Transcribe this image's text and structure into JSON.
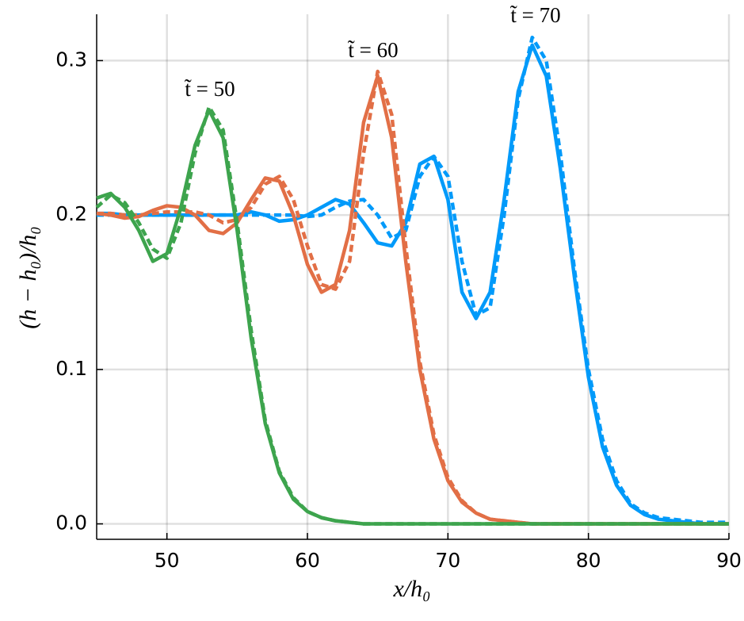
{
  "chart_data": {
    "type": "line",
    "xlabel": "x/h₀",
    "ylabel": "(h − h₀)/h₀",
    "annotations": [
      "t̃ = 50",
      "t̃ = 60",
      "t̃ = 70"
    ],
    "x": [
      45,
      46,
      47,
      48,
      49,
      50,
      51,
      52,
      53,
      54,
      55,
      56,
      57,
      58,
      59,
      60,
      61,
      62,
      63,
      64,
      65,
      66,
      67,
      68,
      69,
      70,
      71,
      72,
      73,
      74,
      75,
      76,
      77,
      78,
      79,
      80,
      81,
      82,
      83,
      84,
      85,
      86,
      87,
      88,
      89,
      90
    ],
    "series": [
      {
        "color": "#009AFA",
        "dash": false,
        "values": [
          0.201,
          0.201,
          0.2,
          0.2,
          0.2,
          0.2,
          0.2,
          0.2,
          0.2,
          0.2,
          0.2,
          0.202,
          0.2,
          0.196,
          0.197,
          0.2,
          0.205,
          0.21,
          0.207,
          0.195,
          0.182,
          0.18,
          0.195,
          0.233,
          0.238,
          0.21,
          0.15,
          0.133,
          0.15,
          0.21,
          0.28,
          0.31,
          0.29,
          0.23,
          0.16,
          0.095,
          0.05,
          0.025,
          0.012,
          0.006,
          0.003,
          0.002,
          0.001,
          0,
          0,
          0
        ]
      },
      {
        "color": "#009AFA",
        "dash": true,
        "values": [
          0.2,
          0.2,
          0.2,
          0.2,
          0.2,
          0.2,
          0.2,
          0.2,
          0.2,
          0.2,
          0.2,
          0.2,
          0.2,
          0.2,
          0.2,
          0.199,
          0.2,
          0.205,
          0.209,
          0.21,
          0.2,
          0.185,
          0.19,
          0.225,
          0.238,
          0.225,
          0.17,
          0.135,
          0.14,
          0.2,
          0.275,
          0.315,
          0.3,
          0.24,
          0.165,
          0.1,
          0.055,
          0.028,
          0.013,
          0.007,
          0.004,
          0.003,
          0.002,
          0.001,
          0.001,
          0.001
        ]
      },
      {
        "color": "#E26F46",
        "dash": false,
        "values": [
          0.201,
          0.2,
          0.198,
          0.199,
          0.203,
          0.206,
          0.205,
          0.2,
          0.19,
          0.188,
          0.195,
          0.21,
          0.224,
          0.222,
          0.2,
          0.168,
          0.15,
          0.155,
          0.19,
          0.26,
          0.29,
          0.25,
          0.17,
          0.1,
          0.055,
          0.028,
          0.014,
          0.007,
          0.003,
          0.002,
          0.001,
          0,
          0,
          0,
          0,
          0,
          0,
          0,
          0,
          0,
          0,
          0,
          0,
          0,
          0,
          0
        ]
      },
      {
        "color": "#E26F46",
        "dash": true,
        "values": [
          0.201,
          0.201,
          0.2,
          0.2,
          0.201,
          0.202,
          0.202,
          0.202,
          0.2,
          0.195,
          0.197,
          0.205,
          0.22,
          0.225,
          0.21,
          0.18,
          0.155,
          0.152,
          0.17,
          0.24,
          0.293,
          0.265,
          0.18,
          0.105,
          0.058,
          0.03,
          0.015,
          0.007,
          0.003,
          0.002,
          0.001,
          0,
          0,
          0,
          0,
          0,
          0,
          0,
          0,
          0,
          0,
          0,
          0,
          0,
          0,
          0
        ]
      },
      {
        "color": "#3DA44D",
        "dash": false,
        "values": [
          0.211,
          0.214,
          0.205,
          0.19,
          0.17,
          0.175,
          0.205,
          0.245,
          0.268,
          0.25,
          0.19,
          0.12,
          0.065,
          0.033,
          0.016,
          0.008,
          0.004,
          0.002,
          0.001,
          0,
          0,
          0,
          0,
          0,
          0,
          0,
          0,
          0,
          0,
          0,
          0,
          0,
          0,
          0,
          0,
          0,
          0,
          0,
          0,
          0,
          0,
          0,
          0,
          0,
          0,
          0
        ]
      },
      {
        "color": "#3DA44D",
        "dash": true,
        "values": [
          0.205,
          0.213,
          0.208,
          0.195,
          0.178,
          0.172,
          0.195,
          0.24,
          0.27,
          0.255,
          0.195,
          0.125,
          0.067,
          0.034,
          0.017,
          0.008,
          0.004,
          0.002,
          0.001,
          0,
          0,
          0,
          0,
          0,
          0,
          0,
          0,
          0,
          0,
          0,
          0,
          0,
          0,
          0,
          0,
          0,
          0,
          0,
          0,
          0,
          0,
          0,
          0,
          0,
          0,
          0
        ]
      }
    ],
    "xlim": [
      45,
      90
    ],
    "ylim": [
      -0.01,
      0.33
    ],
    "xticks": [
      50,
      60,
      70,
      80,
      90
    ],
    "yticks": [
      {
        "value": 0,
        "label": "0.0"
      },
      0.1,
      0.2,
      0.3
    ],
    "grid": true
  }
}
